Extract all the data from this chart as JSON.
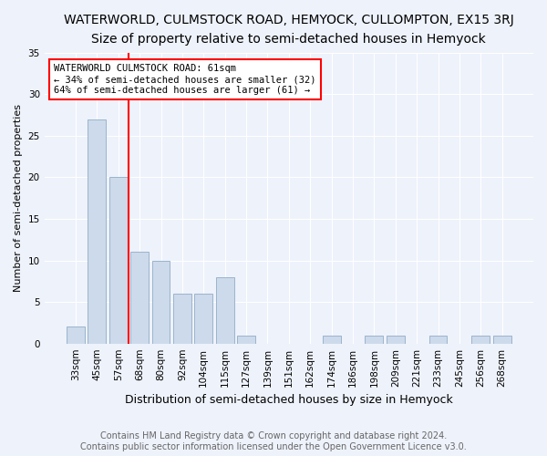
{
  "title": "WATERWORLD, CULMSTOCK ROAD, HEMYOCK, CULLOMPTON, EX15 3RJ",
  "subtitle": "Size of property relative to semi-detached houses in Hemyock",
  "xlabel": "Distribution of semi-detached houses by size in Hemyock",
  "ylabel": "Number of semi-detached properties",
  "bar_labels": [
    "33sqm",
    "45sqm",
    "57sqm",
    "68sqm",
    "80sqm",
    "92sqm",
    "104sqm",
    "115sqm",
    "127sqm",
    "139sqm",
    "151sqm",
    "162sqm",
    "174sqm",
    "186sqm",
    "198sqm",
    "209sqm",
    "221sqm",
    "233sqm",
    "245sqm",
    "256sqm",
    "268sqm"
  ],
  "bar_values": [
    2,
    27,
    20,
    11,
    10,
    6,
    6,
    8,
    1,
    0,
    0,
    0,
    1,
    0,
    1,
    1,
    0,
    1,
    0,
    1,
    1
  ],
  "bar_color": "#cddaeb",
  "bar_edge_color": "#9ab4cc",
  "redline_x": 2.5,
  "ylim": [
    0,
    35
  ],
  "yticks": [
    0,
    5,
    10,
    15,
    20,
    25,
    30,
    35
  ],
  "annotation_text": "WATERWORLD CULMSTOCK ROAD: 61sqm\n← 34% of semi-detached houses are smaller (32)\n64% of semi-detached houses are larger (61) →",
  "footer_line1": "Contains HM Land Registry data © Crown copyright and database right 2024.",
  "footer_line2": "Contains public sector information licensed under the Open Government Licence v3.0.",
  "background_color": "#eef2fb",
  "plot_bg_color": "#eef2fb",
  "title_fontsize": 10,
  "subtitle_fontsize": 9,
  "xlabel_fontsize": 9,
  "ylabel_fontsize": 8,
  "tick_fontsize": 7.5,
  "annot_fontsize": 7.5,
  "footer_fontsize": 7
}
